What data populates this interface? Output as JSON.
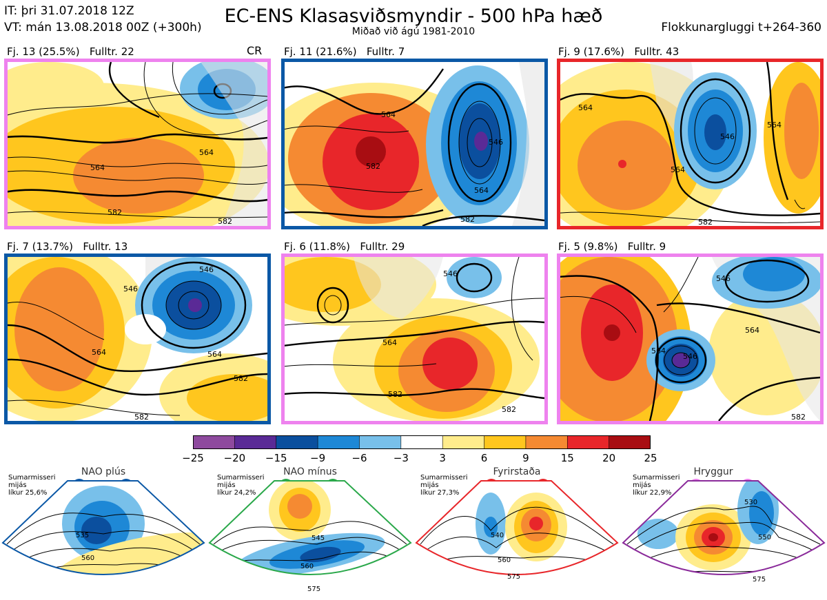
{
  "header": {
    "it": "IT: þri 31.07.2018 12Z",
    "vt": "VT: mán 13.08.2018 00Z  (+300h)",
    "title": "EC-ENS Klasasviðsmyndir - 500 hPa hæð",
    "subtitle": "Miðað við ágú 1981-2010",
    "window": "Flokkunargluggi t+264-360",
    "cr": "CR"
  },
  "colors": {
    "pink": "#ee82ee",
    "blue": "#0b58a6",
    "red": "#e8262a",
    "green": "#2aa84a",
    "purple": "#8a2a9a"
  },
  "panels": [
    {
      "label": "Fj. 13 (25.5%)",
      "members": "Fulltr. 22",
      "regime": "Hryggur",
      "contours": [
        "564",
        "582",
        "564",
        "582"
      ]
    },
    {
      "label": "Fj. 11 (21.6%)",
      "members": "Fulltr. 7",
      "regime": "NAO plús",
      "contours": [
        "564",
        "582",
        "546",
        "564",
        "582"
      ]
    },
    {
      "label": "Fj. 9 (17.6%)",
      "members": "Fulltr. 43",
      "regime": "Fyrirstaða",
      "contours": [
        "564",
        "546",
        "564",
        "564",
        "582"
      ]
    },
    {
      "label": "Fj. 7 (13.7%)",
      "members": "Fulltr. 13",
      "regime": "NAO plús",
      "contours": [
        "546",
        "546",
        "564",
        "564",
        "582",
        "582"
      ]
    },
    {
      "label": "Fj. 6 (11.8%)",
      "members": "Fulltr. 29",
      "regime": "Hryggur",
      "contours": [
        "546",
        "564",
        "582",
        "582"
      ]
    },
    {
      "label": "Fj. 5 (9.8%)",
      "members": "Fulltr. 9",
      "regime": "Hryggur",
      "contours": [
        "546",
        "564",
        "564",
        "546",
        "582"
      ]
    }
  ],
  "colorbar": {
    "ticks": [
      "−25",
      "−20",
      "−15",
      "−9",
      "−6",
      "−3",
      "3",
      "6",
      "9",
      "15",
      "20",
      "25"
    ],
    "colors": [
      "#8e4a9e",
      "#5a2a96",
      "#0b4f9e",
      "#1e88d6",
      "#78c0ea",
      "#ffffff",
      "#ffec8c",
      "#ffc61e",
      "#f58a32",
      "#e8262a",
      "#a80d12"
    ]
  },
  "regimes": [
    {
      "title": "NAO plús",
      "note": [
        "Sumarmisseri",
        "mijás",
        "líkur 25,6%"
      ],
      "contours": [
        "535",
        "560"
      ],
      "color": "#0b58a6"
    },
    {
      "title": "NAO mínus",
      "note": [
        "Sumarmisseri",
        "mijás",
        "líkur 24,2%"
      ],
      "contours": [
        "545",
        "560",
        "575"
      ],
      "color": "#2aa84a"
    },
    {
      "title": "Fyrirstaða",
      "note": [
        "Sumarmisseri",
        "mijás",
        "líkur 27,3%"
      ],
      "contours": [
        "540",
        "560",
        "575"
      ],
      "color": "#e8262a"
    },
    {
      "title": "Hryggur",
      "note": [
        "Sumarmisseri",
        "mijás",
        "líkur 22,9%"
      ],
      "contours": [
        "530",
        "550",
        "575"
      ],
      "color": "#ee82ee"
    }
  ]
}
